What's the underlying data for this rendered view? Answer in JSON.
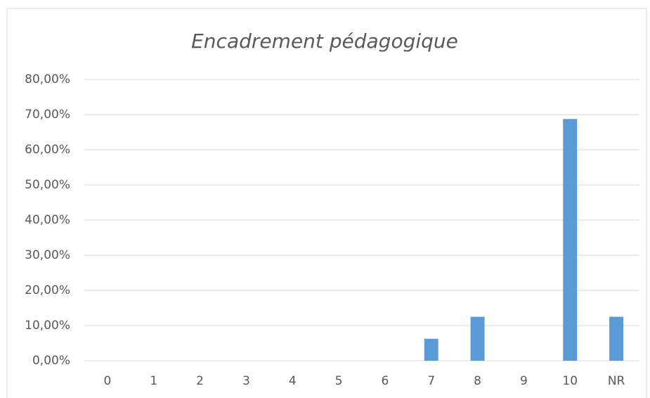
{
  "chart_data": {
    "type": "bar",
    "title": "Encadrement pédagogique",
    "categories": [
      "0",
      "1",
      "2",
      "3",
      "4",
      "5",
      "6",
      "7",
      "8",
      "9",
      "10",
      "NR"
    ],
    "values": [
      0,
      0,
      0,
      0,
      0,
      0,
      0,
      6.25,
      12.5,
      0,
      68.75,
      12.5
    ],
    "color": "#5b9bd5",
    "ylim": [
      0,
      80
    ],
    "yticks": [
      {
        "value": 0,
        "label": "0,00%"
      },
      {
        "value": 10,
        "label": "10,00%"
      },
      {
        "value": 20,
        "label": "20,00%"
      },
      {
        "value": 30,
        "label": "30,00%"
      },
      {
        "value": 40,
        "label": "40,00%"
      },
      {
        "value": 50,
        "label": "50,00%"
      },
      {
        "value": 60,
        "label": "60,00%"
      },
      {
        "value": 70,
        "label": "70,00%"
      },
      {
        "value": 80,
        "label": "80,00%"
      }
    ],
    "grid": true
  }
}
